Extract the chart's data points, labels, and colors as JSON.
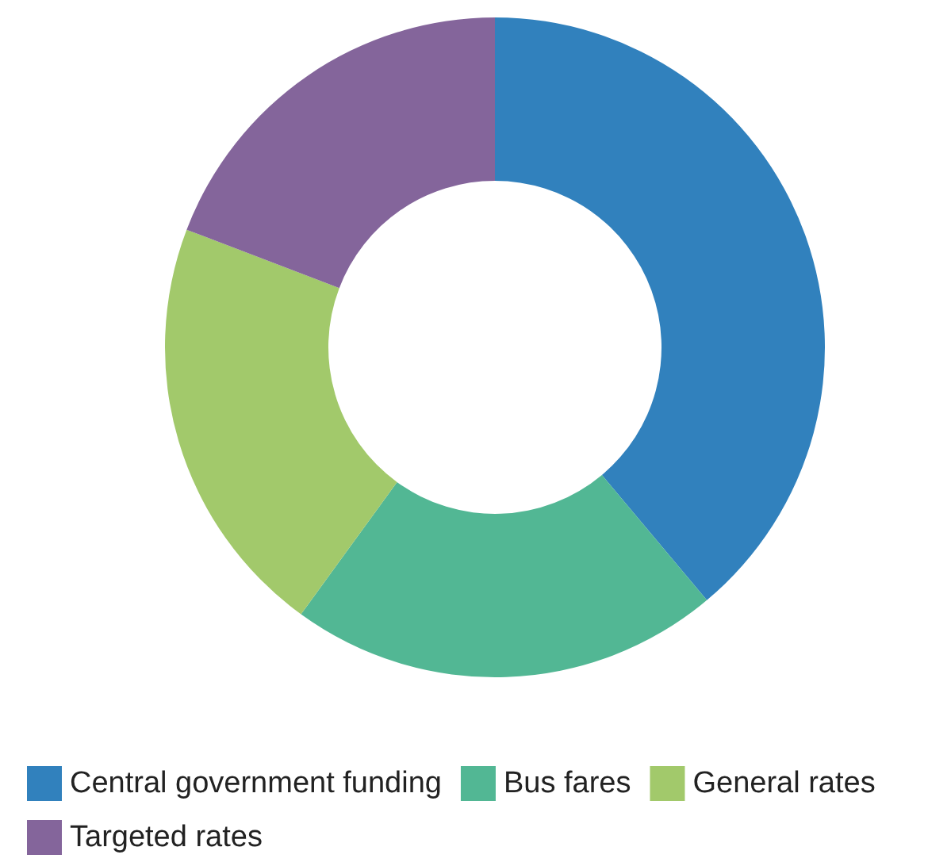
{
  "chart_data": {
    "type": "donut",
    "categories": [
      "Central government funding",
      "Bus fares",
      "General rates",
      "Targeted rates"
    ],
    "values": [
      38.9,
      21.1,
      20.8,
      19.2
    ],
    "colors": [
      "#3181bd",
      "#52b794",
      "#a2c96b",
      "#84659b"
    ],
    "legend": "bottom"
  }
}
